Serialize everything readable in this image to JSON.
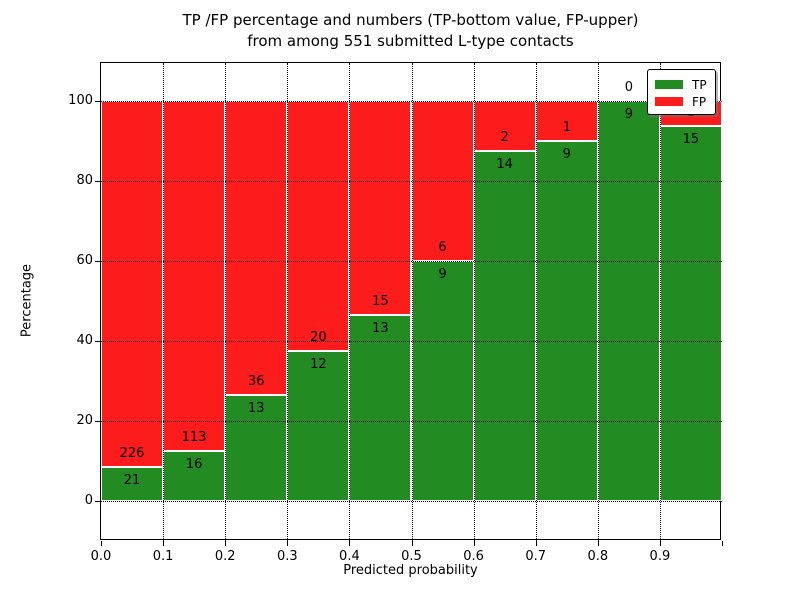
{
  "title": {
    "line1": "TP /FP percentage and numbers (TP-bottom value, FP-upper)",
    "line2": "from among 551 submitted L-type contacts"
  },
  "axes": {
    "xlabel": "Predicted probability",
    "ylabel": "Percentage",
    "x_tick_labels": [
      "0.0",
      "0.1",
      "0.2",
      "0.3",
      "0.4",
      "0.5",
      "0.6",
      "0.7",
      "0.8",
      "0.9"
    ],
    "y_tick_labels": [
      "0",
      "20",
      "40",
      "60",
      "80",
      "100"
    ],
    "y_tick_values": [
      0,
      20,
      40,
      60,
      80,
      100
    ]
  },
  "legend": {
    "items": [
      {
        "label": "TP",
        "color": "#228c22"
      },
      {
        "label": "FP",
        "color": "#fc1c1c"
      }
    ]
  },
  "colors": {
    "tp": "#228c22",
    "fp": "#fc1c1c",
    "bar_edge": "#ffffff",
    "grid": "#000000"
  },
  "chart_data": {
    "type": "bar",
    "stacked": true,
    "normalized": "each bar scaled to 100%",
    "title": "TP /FP percentage and numbers (TP-bottom value, FP-upper) from among 551 submitted L-type contacts",
    "xlabel": "Predicted probability",
    "ylabel": "Percentage",
    "x_bin_edges": [
      0.0,
      0.1,
      0.2,
      0.3,
      0.4,
      0.5,
      0.6,
      0.7,
      0.8,
      0.9,
      1.0
    ],
    "categories": [
      "0.0-0.1",
      "0.1-0.2",
      "0.2-0.3",
      "0.3-0.4",
      "0.4-0.5",
      "0.5-0.6",
      "0.6-0.7",
      "0.7-0.8",
      "0.8-0.9",
      "0.9-1.0"
    ],
    "series": [
      {
        "name": "TP",
        "values": [
          21,
          16,
          13,
          12,
          13,
          9,
          14,
          9,
          9,
          15
        ]
      },
      {
        "name": "FP",
        "values": [
          226,
          113,
          36,
          20,
          15,
          6,
          2,
          1,
          0,
          1
        ]
      }
    ],
    "total_contacts": 551,
    "ylim": [
      -10,
      110
    ],
    "xlim": [
      0.0,
      1.0
    ],
    "grid": "dotted, drawn above bars",
    "legend_position": "upper right"
  }
}
